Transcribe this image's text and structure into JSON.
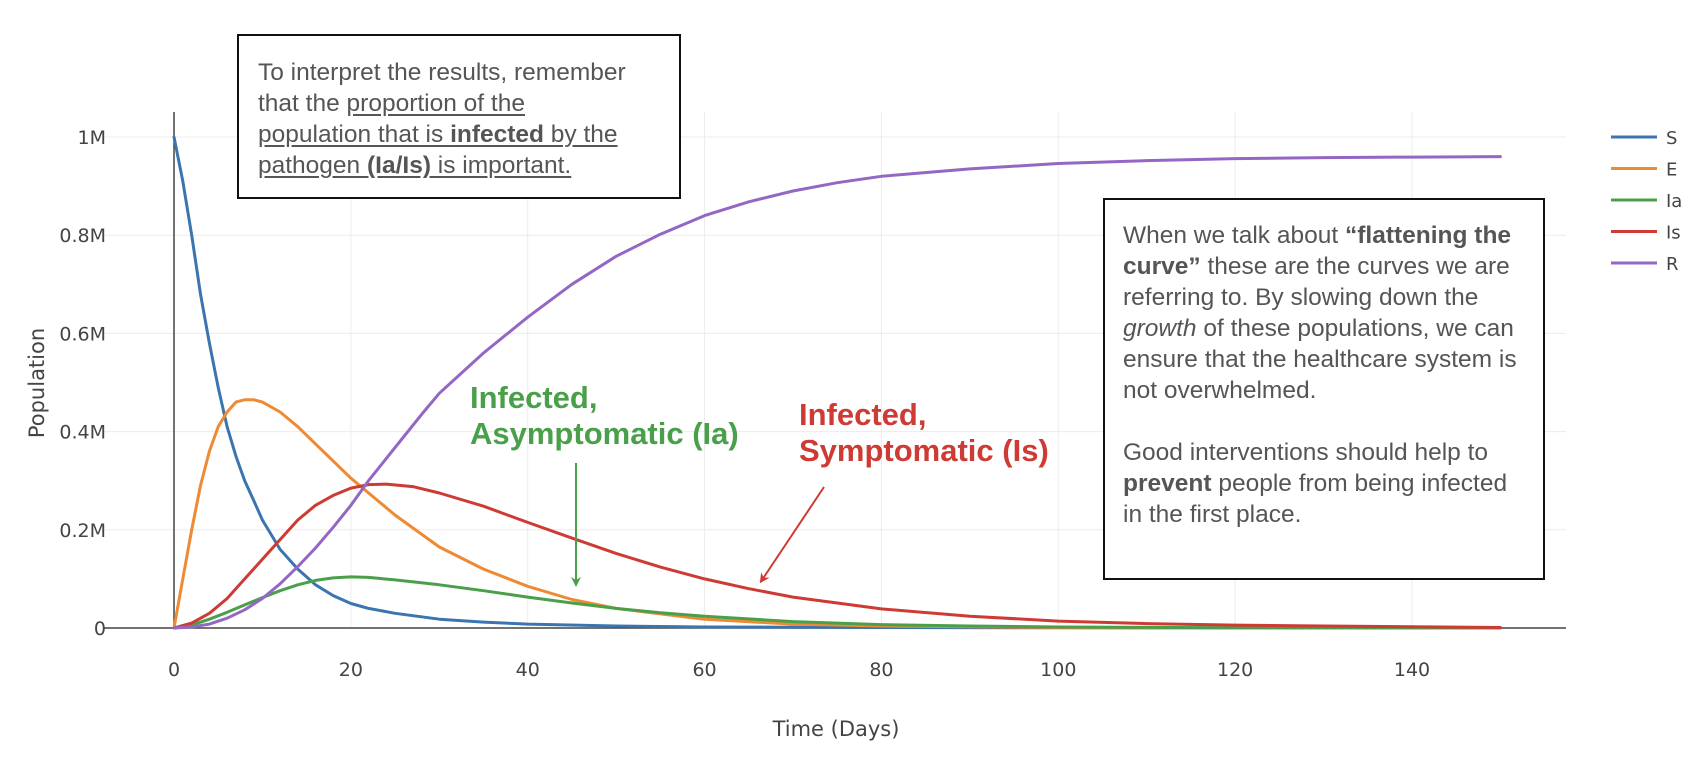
{
  "chart_data": {
    "type": "line",
    "xlabel": "Time (Days)",
    "ylabel": "Population",
    "xlim": [
      -7.5,
      157
    ],
    "ylim": [
      0,
      1.0
    ],
    "x_ticks": [
      0,
      20,
      40,
      60,
      80,
      100,
      120,
      140
    ],
    "x_tick_labels": [
      "0",
      "20",
      "40",
      "60",
      "80",
      "100",
      "120",
      "140"
    ],
    "y_ticks": [
      0,
      0.2,
      0.4,
      0.6,
      0.8,
      1.0
    ],
    "y_tick_labels": [
      "0",
      "0.2M",
      "0.4M",
      "0.6M",
      "0.8M",
      "1M"
    ],
    "grid": true,
    "legend_position": "top-right",
    "series": [
      {
        "name": "S",
        "color": "#3b75af",
        "x": [
          0,
          1,
          2,
          3,
          4,
          5,
          6,
          7,
          8,
          9,
          10,
          12,
          14,
          16,
          18,
          20,
          22,
          25,
          30,
          35,
          40,
          50,
          60,
          80,
          100,
          120,
          150
        ],
        "y": [
          1.0,
          0.91,
          0.8,
          0.68,
          0.58,
          0.49,
          0.41,
          0.35,
          0.3,
          0.26,
          0.22,
          0.16,
          0.12,
          0.088,
          0.066,
          0.05,
          0.04,
          0.03,
          0.018,
          0.012,
          0.008,
          0.004,
          0.002,
          0.001,
          0.0005,
          0.0002,
          0.0001
        ]
      },
      {
        "name": "E",
        "color": "#ef8a34",
        "x": [
          0,
          1,
          2,
          3,
          4,
          5,
          6,
          7,
          8,
          9,
          10,
          12,
          14,
          16,
          18,
          20,
          25,
          30,
          35,
          40,
          45,
          50,
          60,
          70,
          80,
          100,
          120,
          150
        ],
        "y": [
          0,
          0.1,
          0.2,
          0.29,
          0.36,
          0.41,
          0.44,
          0.46,
          0.465,
          0.465,
          0.46,
          0.44,
          0.41,
          0.375,
          0.34,
          0.305,
          0.23,
          0.165,
          0.12,
          0.085,
          0.058,
          0.04,
          0.018,
          0.008,
          0.004,
          0.001,
          0.0003,
          0.0001
        ]
      },
      {
        "name": "Ia",
        "color": "#4aa04a",
        "x": [
          0,
          2,
          4,
          6,
          8,
          10,
          12,
          14,
          16,
          18,
          20,
          22,
          25,
          30,
          35,
          40,
          45,
          50,
          55,
          60,
          70,
          80,
          90,
          100,
          120,
          150
        ],
        "y": [
          0,
          0.006,
          0.018,
          0.032,
          0.047,
          0.062,
          0.076,
          0.088,
          0.097,
          0.102,
          0.104,
          0.103,
          0.098,
          0.088,
          0.076,
          0.063,
          0.051,
          0.04,
          0.031,
          0.024,
          0.013,
          0.007,
          0.004,
          0.002,
          0.0006,
          0.0001
        ]
      },
      {
        "name": "Is",
        "color": "#cd3b34",
        "x": [
          0,
          2,
          4,
          6,
          8,
          10,
          12,
          14,
          16,
          18,
          20,
          22,
          24,
          27,
          30,
          35,
          40,
          45,
          50,
          55,
          60,
          65,
          70,
          80,
          90,
          100,
          110,
          120,
          130,
          150
        ],
        "y": [
          0,
          0.01,
          0.03,
          0.06,
          0.1,
          0.14,
          0.18,
          0.22,
          0.25,
          0.27,
          0.285,
          0.292,
          0.293,
          0.288,
          0.275,
          0.248,
          0.215,
          0.183,
          0.152,
          0.124,
          0.1,
          0.08,
          0.063,
          0.039,
          0.024,
          0.014,
          0.009,
          0.006,
          0.004,
          0.001
        ]
      },
      {
        "name": "R",
        "color": "#9467c4",
        "x": [
          0,
          2,
          4,
          6,
          8,
          10,
          12,
          14,
          16,
          18,
          20,
          22,
          24,
          26,
          28,
          30,
          35,
          40,
          45,
          50,
          55,
          60,
          65,
          70,
          75,
          80,
          90,
          100,
          110,
          120,
          130,
          140,
          150
        ],
        "y": [
          0,
          0.002,
          0.008,
          0.02,
          0.037,
          0.06,
          0.09,
          0.125,
          0.163,
          0.205,
          0.25,
          0.3,
          0.345,
          0.39,
          0.435,
          0.478,
          0.56,
          0.633,
          0.7,
          0.757,
          0.802,
          0.84,
          0.868,
          0.89,
          0.907,
          0.92,
          0.935,
          0.946,
          0.952,
          0.956,
          0.958,
          0.959,
          0.96
        ]
      }
    ]
  },
  "annotations": {
    "top_left": {
      "line1": "To interpret the results, remember",
      "line2_a": "that the ",
      "line2_u": "proportion of the",
      "line3_u": "population that is ",
      "line3_b": "infected",
      "line3_u2": " by the",
      "line4_u": "pathogen ",
      "line4_b": "(Ia/Is)",
      "line4_u2": " is important."
    },
    "right": {
      "p1_a": "When we talk about ",
      "p1_b": "“flattening the curve”",
      "p1_c": " these are the curves we are referring to. By slowing down the ",
      "p1_i": "growth",
      "p1_d": " of these populations, we can ensure that the healthcare system is not overwhelmed.",
      "p2_b": "prevent",
      "p2_a": "Good interventions should help to ",
      "p2_c": " people from being infected in the first place."
    },
    "callout_ia": {
      "line1": "Infected,",
      "line2": "Asymptomatic (Ia)"
    },
    "callout_is": {
      "line1": "Infected,",
      "line2": "Symptomatic (Is)"
    }
  }
}
